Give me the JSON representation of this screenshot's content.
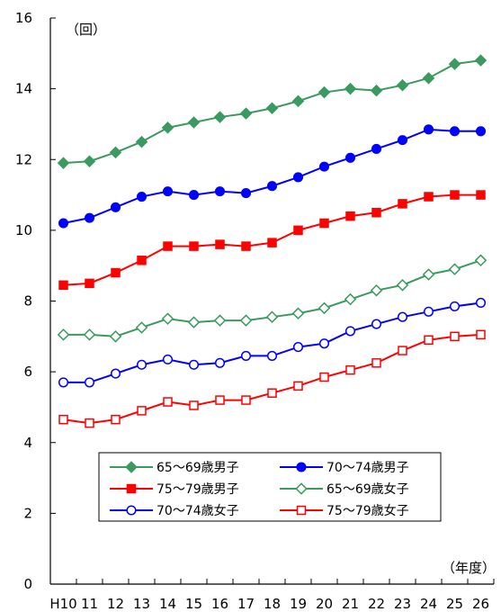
{
  "chart_data": {
    "type": "line",
    "y_unit": "（回）",
    "x_unit": "（年度）",
    "ylim": [
      0,
      16
    ],
    "yticks": [
      "0",
      "2",
      "4",
      "6",
      "8",
      "10",
      "12",
      "14",
      "16"
    ],
    "categories": [
      "H10",
      "11",
      "12",
      "13",
      "14",
      "15",
      "16",
      "17",
      "18",
      "19",
      "20",
      "21",
      "22",
      "23",
      "24",
      "25",
      "26"
    ],
    "grid": false,
    "legend_position": "bottom-right",
    "series": [
      {
        "name": "65～69歳男子",
        "color": "#3a9a5f",
        "marker": "diamond",
        "filled": true,
        "values": [
          11.9,
          11.95,
          12.2,
          12.5,
          12.9,
          13.05,
          13.2,
          13.3,
          13.45,
          13.65,
          13.9,
          14.0,
          13.95,
          14.1,
          14.3,
          14.7,
          14.8
        ]
      },
      {
        "name": "70～74歳男子",
        "color": "#0000ff",
        "marker": "circle",
        "filled": true,
        "values": [
          10.2,
          10.35,
          10.65,
          10.95,
          11.1,
          11.0,
          11.1,
          11.05,
          11.25,
          11.5,
          11.8,
          12.05,
          12.3,
          12.55,
          12.85,
          12.8,
          12.8
        ]
      },
      {
        "name": "75～79歳男子",
        "color": "#ff0000",
        "marker": "square",
        "filled": true,
        "values": [
          8.45,
          8.5,
          8.8,
          9.15,
          9.55,
          9.55,
          9.6,
          9.55,
          9.65,
          10.0,
          10.2,
          10.4,
          10.5,
          10.75,
          10.95,
          11.0,
          11.0
        ]
      },
      {
        "name": "65～69歳女子",
        "color": "#3a9a5f",
        "marker": "diamond",
        "filled": false,
        "values": [
          7.05,
          7.05,
          7.0,
          7.25,
          7.5,
          7.4,
          7.45,
          7.45,
          7.55,
          7.65,
          7.8,
          8.05,
          8.3,
          8.45,
          8.75,
          8.9,
          9.15
        ]
      },
      {
        "name": "70～74歳女子",
        "color": "#0000ff",
        "marker": "circle",
        "filled": false,
        "values": [
          5.7,
          5.7,
          5.95,
          6.2,
          6.35,
          6.2,
          6.25,
          6.45,
          6.45,
          6.7,
          6.8,
          7.15,
          7.35,
          7.55,
          7.7,
          7.85,
          7.95
        ]
      },
      {
        "name": "75～79歳女子",
        "color": "#ff0000",
        "marker": "square",
        "filled": false,
        "values": [
          4.65,
          4.55,
          4.65,
          4.9,
          5.15,
          5.05,
          5.2,
          5.2,
          5.4,
          5.6,
          5.85,
          6.05,
          6.25,
          6.6,
          6.9,
          7.0,
          7.05
        ]
      }
    ]
  }
}
